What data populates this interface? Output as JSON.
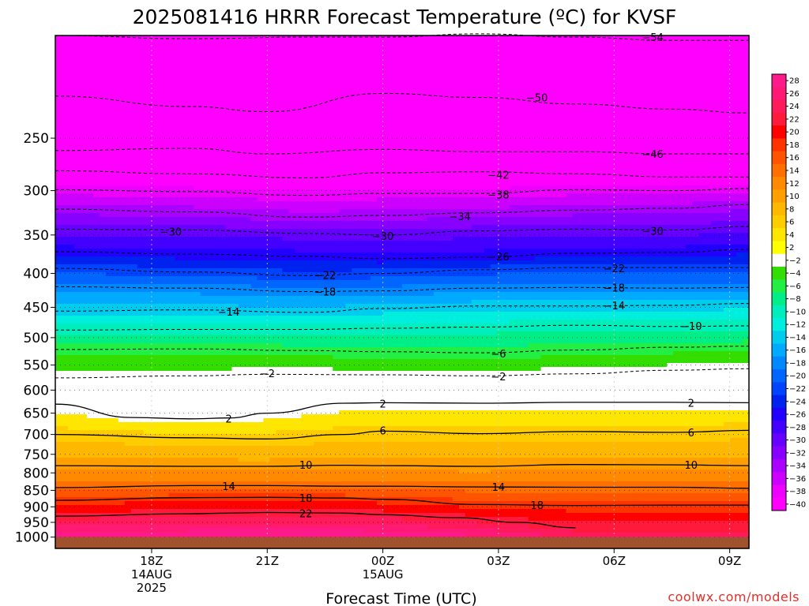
{
  "chart_data": {
    "type": "heatmap",
    "title": "2025081416 HRRR Forecast Temperature (ºC) for KVSF",
    "xlabel": "Forecast Time (UTC)",
    "ylabel": "",
    "x_range_hours": [
      -2.5,
      15.5
    ],
    "y_range_hpa": [
      1040,
      175
    ],
    "y_scale": "log",
    "y_ticks": [
      250,
      300,
      350,
      400,
      450,
      500,
      550,
      600,
      650,
      700,
      750,
      800,
      850,
      900,
      950,
      1000
    ],
    "x_ticks": [
      {
        "hour": 0,
        "lines": [
          "18Z",
          "14AUG",
          "2025"
        ]
      },
      {
        "hour": 3,
        "lines": [
          "21Z"
        ]
      },
      {
        "hour": 6,
        "lines": [
          "00Z",
          "15AUG"
        ]
      },
      {
        "hour": 9,
        "lines": [
          "03Z"
        ]
      },
      {
        "hour": 12,
        "lines": [
          "06Z"
        ]
      },
      {
        "hour": 15,
        "lines": [
          "09Z"
        ]
      }
    ],
    "grid": true,
    "ground_pressure_hpa": 1000,
    "colorbar": {
      "placement": "right",
      "labels": [
        "28",
        "26",
        "24",
        "22",
        "20",
        "18",
        "16",
        "14",
        "12",
        "10",
        "8",
        "6",
        "4",
        "2",
        "-2",
        "-4",
        "-6",
        "-8",
        "-10",
        "-12",
        "-14",
        "-16",
        "-18",
        "-20",
        "-22",
        "-24",
        "-26",
        "-28",
        "-30",
        "-32",
        "-34",
        "-36",
        "-38",
        "-40"
      ],
      "colors": [
        "#ff1a8c",
        "#ff1a75",
        "#ff1a5c",
        "#ff1a3c",
        "#ff0000",
        "#ff3300",
        "#ff5500",
        "#ff7000",
        "#ff8a00",
        "#ffa000",
        "#ffb800",
        "#ffcc00",
        "#ffe600",
        "#ffff00",
        "#ffffff",
        "#33dd00",
        "#22ee44",
        "#00ee88",
        "#00eebb",
        "#00eedd",
        "#00ccee",
        "#00aaff",
        "#0088ff",
        "#0066ff",
        "#0044ff",
        "#0022ee",
        "#2200ff",
        "#4400ff",
        "#6600ff",
        "#8800ff",
        "#aa00ff",
        "#cc00ff",
        "#ee00ff",
        "#ff00ff"
      ]
    },
    "series": [
      {
        "value": -54,
        "x": [
          -2.5,
          1,
          4,
          6,
          8.5,
          11,
          13.5,
          15.5
        ],
        "y": [
          175,
          177,
          176,
          176,
          174,
          176,
          178,
          178
        ],
        "label_positions": [
          [
            13,
            176
          ]
        ]
      },
      {
        "value": -50,
        "x": [
          -2.5,
          1,
          3,
          6,
          8.5,
          11,
          13.5,
          15.5
        ],
        "y": [
          216,
          224,
          228,
          214,
          217,
          222,
          226,
          229
        ],
        "label_positions": [
          [
            10,
            217
          ]
        ]
      },
      {
        "value": -46,
        "x": [
          -2.5,
          1,
          3,
          6,
          8.5,
          11,
          13.5,
          15.5
        ],
        "y": [
          261,
          259,
          264,
          260,
          262,
          262,
          264,
          264
        ],
        "label_positions": [
          [
            13,
            264
          ]
        ]
      },
      {
        "value": -42,
        "x": [
          -2.5,
          1,
          4,
          6,
          8.5,
          11,
          13.5,
          15.5
        ],
        "y": [
          280,
          283,
          287,
          282,
          281,
          283,
          286,
          286
        ],
        "label_positions": [
          [
            9,
            284
          ]
        ]
      },
      {
        "value": -38,
        "x": [
          -2.5,
          1,
          4,
          6,
          8.5,
          11,
          13.5,
          15.5
        ],
        "y": [
          299,
          301,
          305,
          303,
          303,
          299,
          300,
          298
        ],
        "label_positions": [
          [
            9,
            304
          ]
        ]
      },
      {
        "value": -34,
        "x": [
          -2.5,
          1,
          4,
          6,
          8.5,
          11,
          13.5,
          15.5
        ],
        "y": [
          320,
          323,
          329,
          327,
          324,
          321,
          319,
          315
        ],
        "label_positions": [
          [
            8,
            328
          ]
        ]
      },
      {
        "value": -30,
        "x": [
          -2.5,
          1,
          4,
          6,
          8.5,
          11,
          13.5,
          15.5
        ],
        "y": [
          343,
          344,
          348,
          350,
          345,
          343,
          344,
          340
        ],
        "label_positions": [
          [
            0.5,
            346
          ],
          [
            6,
            351
          ],
          [
            13,
            345
          ]
        ]
      },
      {
        "value": -26,
        "x": [
          -2.5,
          1,
          4,
          6,
          8.5,
          11,
          13.5,
          15.5
        ],
        "y": [
          371,
          374,
          377,
          380,
          378,
          373,
          372,
          368
        ],
        "label_positions": [
          [
            9,
            377
          ]
        ]
      },
      {
        "value": -22,
        "x": [
          -2.5,
          1,
          4,
          6,
          8.5,
          11,
          13.5,
          15.5
        ],
        "y": [
          393,
          398,
          403,
          400,
          395,
          392,
          392,
          392
        ],
        "label_positions": [
          [
            4.5,
            402
          ],
          [
            12,
            393
          ]
        ]
      },
      {
        "value": -18,
        "x": [
          -2.5,
          1,
          4,
          6,
          8.5,
          11,
          13.5,
          15.5
        ],
        "y": [
          419,
          421,
          426,
          425,
          421,
          420,
          421,
          420
        ],
        "label_positions": [
          [
            4.5,
            426
          ],
          [
            12,
            420
          ]
        ]
      },
      {
        "value": -14,
        "x": [
          -2.5,
          1,
          4,
          6,
          8.5,
          11,
          13.5,
          15.5
        ],
        "y": [
          456,
          454,
          458,
          452,
          448,
          448,
          447,
          444
        ],
        "label_positions": [
          [
            2,
            457
          ],
          [
            12,
            447
          ]
        ]
      },
      {
        "value": -10,
        "x": [
          -2.5,
          1,
          4,
          6,
          8.5,
          11,
          13.5,
          15.5
        ],
        "y": [
          487,
          486,
          486,
          484,
          482,
          479,
          481,
          480
        ],
        "label_positions": [
          [
            14,
            480
          ]
        ]
      },
      {
        "value": -6,
        "x": [
          -2.5,
          1,
          4,
          6,
          8.5,
          11,
          13.5,
          15.5
        ],
        "y": [
          521,
          520,
          523,
          525,
          527,
          522,
          517,
          515
        ],
        "label_positions": [
          [
            9,
            528
          ]
        ]
      },
      {
        "value": -2,
        "x": [
          -2.5,
          1,
          3,
          6,
          8.5,
          11,
          13.5,
          15.5
        ],
        "y": [
          575,
          571,
          568,
          569,
          571,
          567,
          560,
          557
        ],
        "label_positions": [
          [
            3,
            566
          ],
          [
            9,
            572
          ]
        ]
      },
      {
        "value": 2,
        "x": [
          -2.5,
          -0.5,
          1,
          2,
          3,
          5,
          6,
          8.5,
          11,
          13.5,
          15.5
        ],
        "y": [
          630,
          660,
          663,
          661,
          650,
          628,
          627,
          628,
          626,
          626,
          627
        ],
        "label_positions": [
          [
            2,
            662
          ],
          [
            6,
            629
          ],
          [
            14,
            627
          ]
        ]
      },
      {
        "value": 6,
        "x": [
          -2.5,
          1,
          3,
          5,
          6,
          8.5,
          11,
          13.5,
          15.5
        ],
        "y": [
          700,
          708,
          711,
          700,
          692,
          698,
          693,
          695,
          690
        ],
        "label_positions": [
          [
            6,
            690
          ],
          [
            14,
            695
          ]
        ]
      },
      {
        "value": 10,
        "x": [
          -2.5,
          1,
          3,
          5,
          6,
          8.5,
          11,
          13.5,
          15.5
        ],
        "y": [
          780,
          782,
          782,
          779,
          780,
          782,
          777,
          778,
          780
        ],
        "label_positions": [
          [
            4,
            778
          ],
          [
            14,
            778
          ]
        ]
      },
      {
        "value": 14,
        "x": [
          -2.5,
          1,
          3,
          5,
          6,
          8.5,
          11,
          13.5,
          15.5
        ],
        "y": [
          842,
          836,
          836,
          838,
          838,
          840,
          841,
          841,
          844
        ],
        "label_positions": [
          [
            2,
            837
          ],
          [
            9,
            840
          ]
        ]
      },
      {
        "value": 18,
        "x": [
          -2.5,
          1,
          3,
          5,
          6,
          8.5,
          11,
          13.5,
          15.5
        ],
        "y": [
          880,
          872,
          871,
          873,
          877,
          893,
          896,
          895,
          895
        ],
        "label_positions": [
          [
            4,
            873
          ],
          [
            10,
            895
          ]
        ]
      },
      {
        "value": 22,
        "x": [
          -2.5,
          1,
          2,
          3,
          5,
          6,
          8,
          9.5,
          11
        ],
        "y": [
          930,
          922,
          920,
          918,
          920,
          925,
          935,
          950,
          968
        ],
        "label_positions": [
          [
            4,
            920
          ]
        ]
      }
    ]
  },
  "credit": "coolwx.com/models"
}
